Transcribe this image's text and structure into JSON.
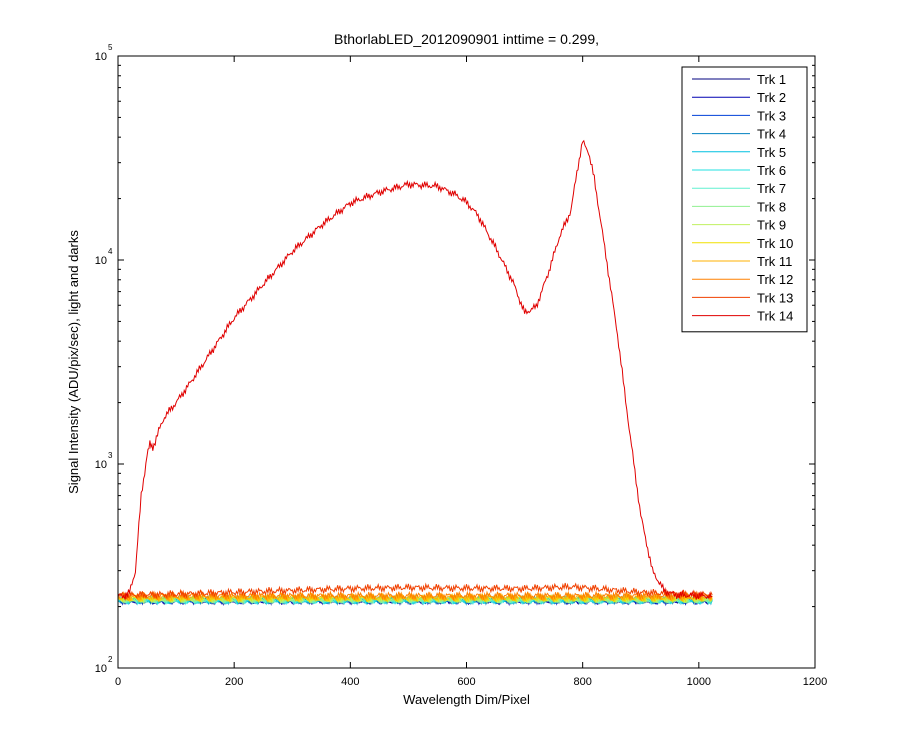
{
  "chart_data": {
    "type": "line",
    "title": "BthorlabLED_2012090901 inttime = 0.299,",
    "xlabel": "Wavelength Dim/Pixel",
    "ylabel": "Signal Intensity (ADU/pix/sec), light and darks",
    "xlim": [
      0,
      1200
    ],
    "ylim": [
      100,
      100000
    ],
    "yscale": "log",
    "xticks": [
      "0",
      "200",
      "400",
      "600",
      "800",
      "1000",
      "1200"
    ],
    "yticks": [
      {
        "base": "10",
        "exp": "2"
      },
      {
        "base": "10",
        "exp": "3"
      },
      {
        "base": "10",
        "exp": "4"
      },
      {
        "base": "10",
        "exp": "5"
      }
    ],
    "legend_position": "top-right",
    "grid": false,
    "series": [
      {
        "name": "Trk 1",
        "color": "#00007f",
        "x": [
          0,
          1023
        ],
        "y": [
          215,
          215
        ]
      },
      {
        "name": "Trk 2",
        "color": "#0000b2",
        "x": [
          0,
          1023
        ],
        "y": [
          214,
          214
        ]
      },
      {
        "name": "Trk 3",
        "color": "#0040d8",
        "x": [
          0,
          1023
        ],
        "y": [
          216,
          216
        ]
      },
      {
        "name": "Trk 4",
        "color": "#0080c0",
        "x": [
          0,
          1023
        ],
        "y": [
          215,
          215
        ]
      },
      {
        "name": "Trk 5",
        "color": "#00c0e0",
        "x": [
          0,
          1023
        ],
        "y": [
          216,
          216
        ]
      },
      {
        "name": "Trk 6",
        "color": "#20e0e0",
        "x": [
          0,
          1023
        ],
        "y": [
          215,
          215
        ]
      },
      {
        "name": "Trk 7",
        "color": "#60f0d0",
        "x": [
          0,
          1023
        ],
        "y": [
          216,
          216
        ]
      },
      {
        "name": "Trk 8",
        "color": "#90f090",
        "x": [
          0,
          1023
        ],
        "y": [
          217,
          217
        ]
      },
      {
        "name": "Trk 9",
        "color": "#c0f060",
        "x": [
          0,
          1023
        ],
        "y": [
          218,
          218
        ]
      },
      {
        "name": "Trk 10",
        "color": "#f0e000",
        "x": [
          0,
          1023
        ],
        "y": [
          220,
          220
        ]
      },
      {
        "name": "Trk 11",
        "color": "#ffb000",
        "x": [
          0,
          1023
        ],
        "y": [
          222,
          222
        ]
      },
      {
        "name": "Trk 12",
        "color": "#ff8000",
        "x": [
          0,
          1023
        ],
        "y": [
          226,
          226
        ]
      },
      {
        "name": "Trk 13",
        "color": "#f04000",
        "x": [
          0,
          20,
          100,
          200,
          300,
          400,
          500,
          600,
          700,
          780,
          800,
          900,
          1023
        ],
        "y": [
          228,
          228,
          230,
          235,
          240,
          245,
          248,
          246,
          245,
          250,
          248,
          235,
          228
        ]
      },
      {
        "name": "Trk 14",
        "color": "#e00000",
        "x": [
          0,
          10,
          20,
          30,
          40,
          50,
          55,
          60,
          70,
          80,
          100,
          120,
          150,
          200,
          250,
          300,
          350,
          400,
          450,
          500,
          550,
          580,
          600,
          620,
          650,
          680,
          700,
          720,
          740,
          760,
          780,
          790,
          800,
          810,
          820,
          840,
          860,
          880,
          900,
          920,
          940,
          960,
          1023
        ],
        "y": [
          225,
          225,
          235,
          300,
          700,
          1100,
          1250,
          1200,
          1450,
          1700,
          2000,
          2400,
          3200,
          5200,
          7600,
          11000,
          14800,
          19000,
          21500,
          23500,
          23000,
          21000,
          19200,
          16500,
          11500,
          7800,
          5500,
          5900,
          8500,
          13000,
          17500,
          27000,
          38000,
          34000,
          25000,
          10500,
          4300,
          1500,
          560,
          300,
          240,
          228,
          225
        ]
      }
    ]
  }
}
